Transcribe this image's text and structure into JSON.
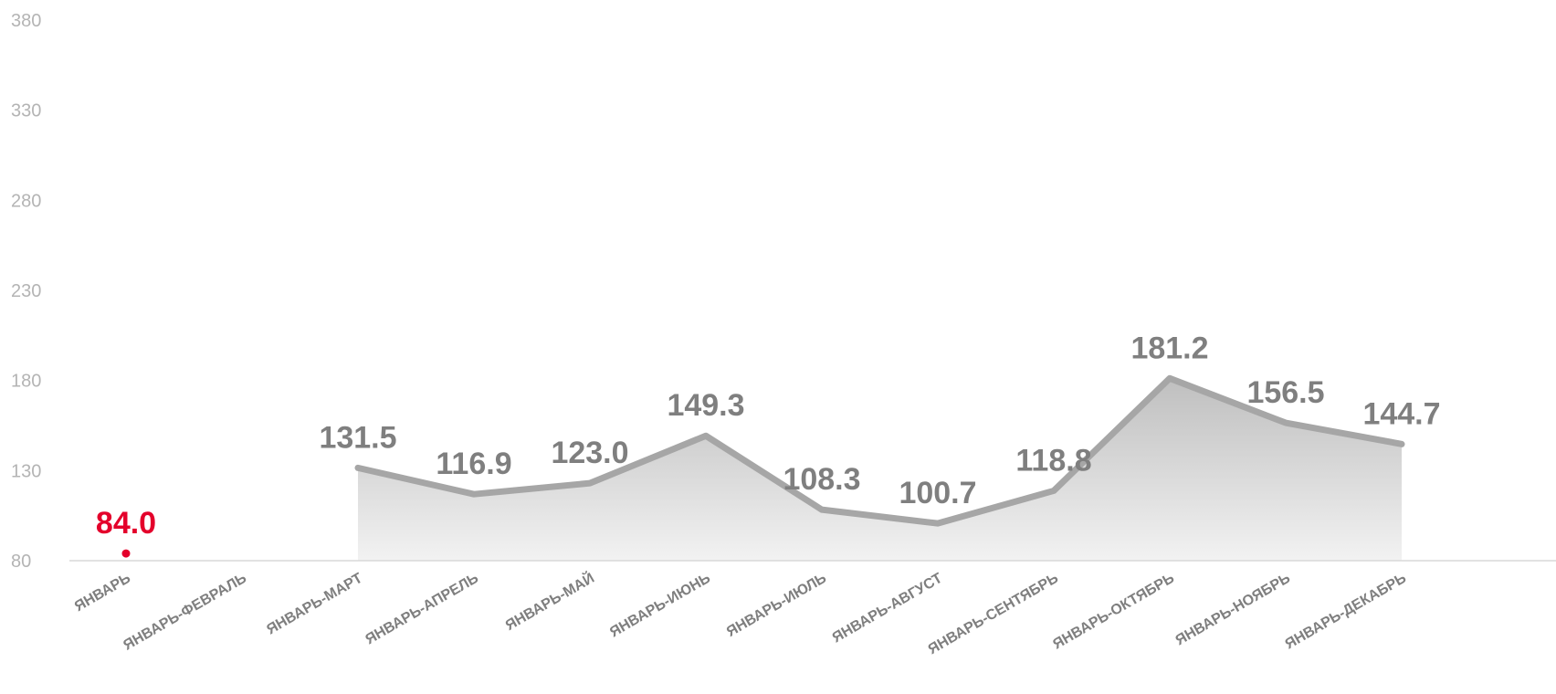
{
  "chart_data": {
    "type": "area",
    "title": "",
    "xlabel": "",
    "ylabel": "",
    "ylim": [
      80,
      380
    ],
    "yticks": [
      80,
      130,
      180,
      230,
      280,
      330,
      380
    ],
    "categories": [
      "ЯНВАРЬ",
      "ЯНВАРЬ-ФЕВРАЛЬ",
      "ЯНВАРЬ-МАРТ",
      "ЯНВАРЬ-АПРЕЛЬ",
      "ЯНВАРЬ-МАЙ",
      "ЯНВАРЬ-ИЮНЬ",
      "ЯНВАРЬ-ИЮЛЬ",
      "ЯНВАРЬ-АВГУСТ",
      "ЯНВАРЬ-СЕНТЯБРЬ",
      "ЯНВАРЬ-ОКТЯБРЬ",
      "ЯНВАРЬ-НОЯБРЬ",
      "ЯНВАРЬ-ДЕКАБРЬ"
    ],
    "series": [
      {
        "values": [
          84.0,
          null,
          131.5,
          116.9,
          123.0,
          149.3,
          108.3,
          100.7,
          118.8,
          181.2,
          156.5,
          144.7
        ],
        "labels": [
          "84.0",
          "",
          "131.5",
          "116.9",
          "123.0",
          "149.3",
          "108.3",
          "100.7",
          "118.8",
          "181.2",
          "156.5",
          "144.7"
        ]
      }
    ],
    "highlight_index": 0,
    "grid": false,
    "legend": "none",
    "colors": {
      "line": "#a6a6a6",
      "area_top": "#bfbfbf",
      "area_bottom": "#f2f2f2",
      "highlight": "#e4002b",
      "label": "#7f7f7f",
      "axis_text": "#b4b4b4",
      "baseline": "#d9d9d9"
    }
  }
}
